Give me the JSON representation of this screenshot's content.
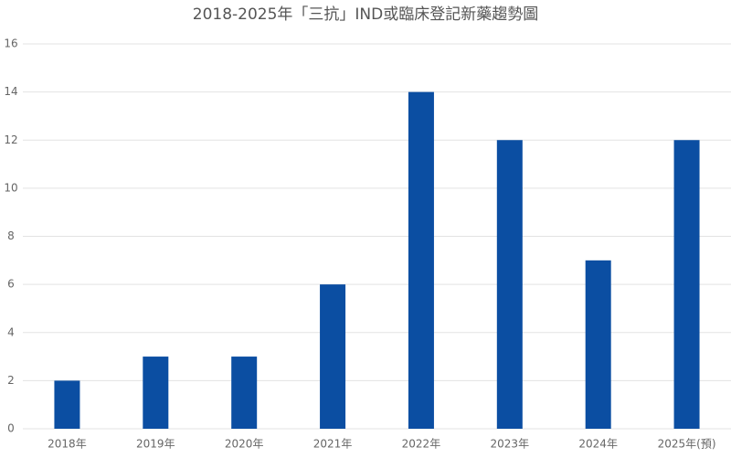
{
  "chart_data": {
    "type": "bar",
    "title": "2018-2025年「三抗」IND或臨床登記新藥趨勢圖",
    "categories": [
      "2018年",
      "2019年",
      "2020年",
      "2021年",
      "2022年",
      "2023年",
      "2024年",
      "2025年(預)"
    ],
    "values": [
      2,
      3,
      3,
      6,
      14,
      12,
      7,
      12
    ],
    "color": "#0b4ea2",
    "ylim": [
      0,
      16
    ],
    "yticks": [
      0,
      2,
      4,
      6,
      8,
      10,
      12,
      14,
      16
    ],
    "grid": true
  }
}
